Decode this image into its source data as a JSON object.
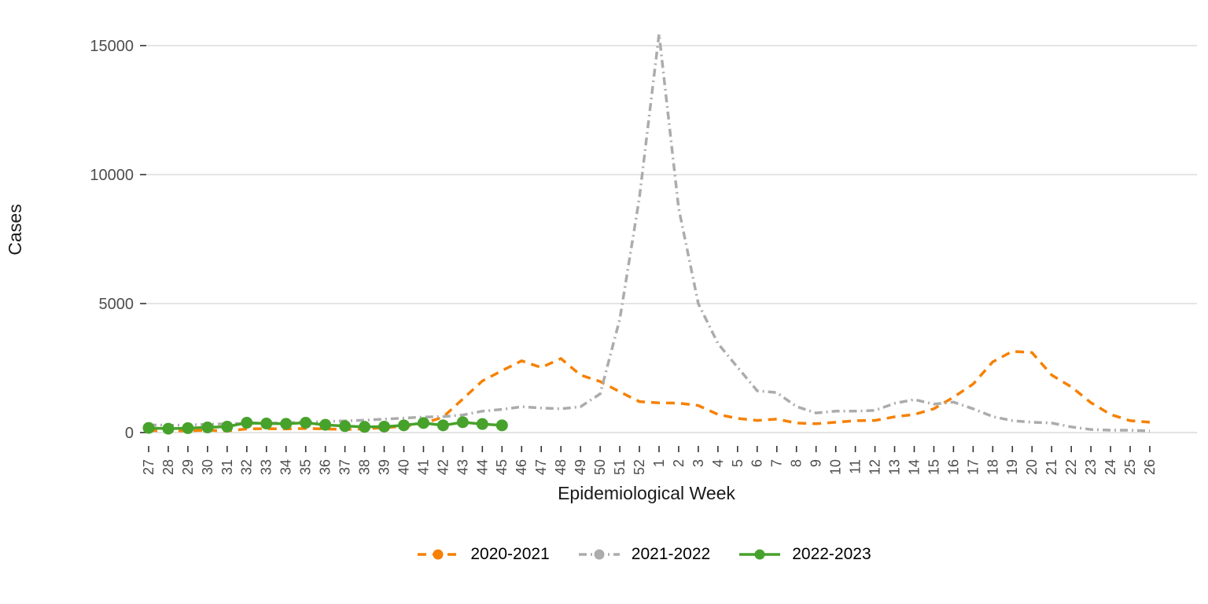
{
  "figure": {
    "ylabel": "Cases",
    "xlabel": "Epidemiological Week"
  },
  "colors": {
    "background": "#ffffff",
    "gridline": "#DBDBDB",
    "axis_text": "#4D4D4D",
    "tick_mark": "#333333",
    "title_text": "#1A1A1A"
  },
  "chart_data": {
    "type": "line",
    "title": "",
    "xlabel": "Epidemiological Week",
    "ylabel": "Cases",
    "grid": "horizontal-major-only",
    "legend_position": "bottom-center",
    "ylim": [
      0,
      15500
    ],
    "yticks": [
      0,
      5000,
      10000,
      15000
    ],
    "categories": [
      "27",
      "28",
      "29",
      "30",
      "31",
      "32",
      "33",
      "34",
      "35",
      "36",
      "37",
      "38",
      "39",
      "40",
      "41",
      "42",
      "43",
      "44",
      "45",
      "46",
      "47",
      "48",
      "49",
      "50",
      "51",
      "52",
      "1",
      "2",
      "3",
      "4",
      "5",
      "6",
      "7",
      "8",
      "9",
      "10",
      "11",
      "12",
      "13",
      "14",
      "15",
      "16",
      "17",
      "18",
      "19",
      "20",
      "21",
      "22",
      "23",
      "24",
      "25",
      "26"
    ],
    "series": [
      {
        "name": "2020-2021",
        "color": "#F68104",
        "style": "dashed",
        "marker": false,
        "values": [
          80,
          60,
          70,
          90,
          60,
          140,
          150,
          140,
          160,
          140,
          120,
          140,
          190,
          240,
          350,
          600,
          1300,
          2000,
          2400,
          2780,
          2520,
          2870,
          2230,
          1980,
          1580,
          1200,
          1150,
          1140,
          1050,
          700,
          550,
          470,
          520,
          370,
          340,
          400,
          460,
          470,
          610,
          700,
          920,
          1370,
          1880,
          2740,
          3150,
          3100,
          2230,
          1770,
          1160,
          700,
          460,
          400
        ]
      },
      {
        "name": "2021-2022",
        "color": "#ACACAC",
        "style": "dashdot",
        "marker": false,
        "values": [
          300,
          280,
          290,
          320,
          340,
          350,
          360,
          380,
          400,
          430,
          450,
          480,
          520,
          560,
          600,
          620,
          680,
          830,
          900,
          1000,
          950,
          920,
          1000,
          1500,
          4400,
          9100,
          15450,
          8700,
          5000,
          3450,
          2530,
          1620,
          1550,
          1010,
          760,
          830,
          830,
          860,
          1130,
          1280,
          1100,
          1180,
          920,
          620,
          460,
          400,
          370,
          220,
          120,
          90,
          90,
          60
        ]
      },
      {
        "name": "2022-2023",
        "color": "#47A22B",
        "style": "solid",
        "marker": true,
        "values": [
          180,
          150,
          170,
          200,
          230,
          380,
          350,
          340,
          380,
          300,
          250,
          220,
          230,
          280,
          370,
          280,
          400,
          330,
          280,
          null,
          null,
          null,
          null,
          null,
          null,
          null,
          null,
          null,
          null,
          null,
          null,
          null,
          null,
          null,
          null,
          null,
          null,
          null,
          null,
          null,
          null,
          null,
          null,
          null,
          null,
          null,
          null,
          null,
          null,
          null,
          null,
          null
        ]
      }
    ]
  }
}
